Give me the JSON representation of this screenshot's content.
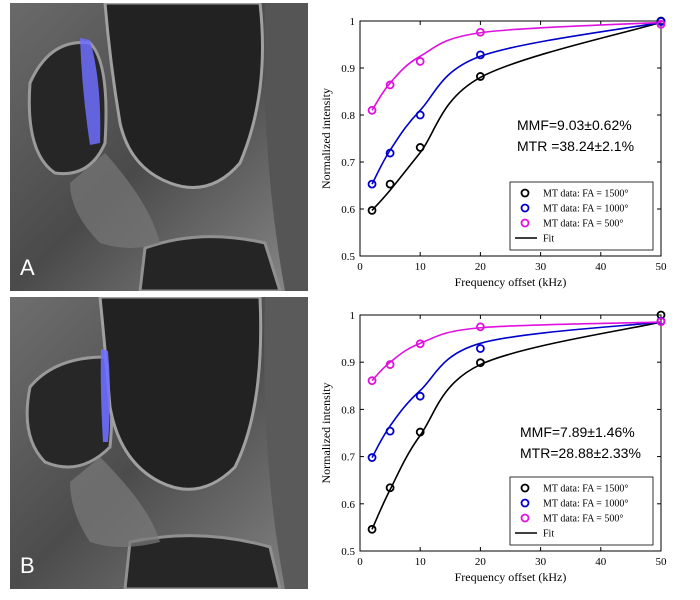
{
  "panels": [
    {
      "label": "A",
      "stats": [
        "MMF=9.03±0.62%",
        "MTR =38.24±2.1%"
      ]
    },
    {
      "label": "B",
      "stats": [
        "MMF=7.89±1.46%",
        "MTR=28.88±2.33%"
      ]
    }
  ],
  "colors": {
    "fa1500": "#000000",
    "fa1000": "#0000cc",
    "fa500": "#e010e0",
    "overlay": "#6f6fff"
  },
  "chart_data": [
    {
      "type": "scatter",
      "title": "",
      "xlabel": "Frequency offset (kHz)",
      "ylabel": "Normalized intensity",
      "xlim": [
        0,
        50
      ],
      "ylim": [
        0.5,
        1
      ],
      "xticks": [
        "0",
        "10",
        "20",
        "30",
        "40",
        "50"
      ],
      "yticks": [
        "0.5",
        "0.6",
        "0.7",
        "0.8",
        "0.9",
        "1"
      ],
      "legend_position": "bottom-right",
      "legend": [
        "MT data: FA = 1500°",
        "MT data: FA = 1000°",
        "MT data: FA = 500°",
        "Fit"
      ],
      "series": [
        {
          "name": "MT data: FA = 1500°",
          "color": "#000000",
          "x": [
            2,
            5,
            10,
            20,
            50
          ],
          "y": [
            0.597,
            0.653,
            0.731,
            0.882,
            1.0
          ],
          "fit_y": [
            0.597,
            0.64,
            0.72,
            0.88,
            0.997
          ]
        },
        {
          "name": "MT data: FA = 1000°",
          "color": "#0000cc",
          "x": [
            2,
            5,
            10,
            20,
            50
          ],
          "y": [
            0.653,
            0.719,
            0.8,
            0.928,
            0.999
          ],
          "fit_y": [
            0.653,
            0.725,
            0.81,
            0.925,
            0.997
          ]
        },
        {
          "name": "MT data: FA = 500°",
          "color": "#e010e0",
          "x": [
            2,
            5,
            10,
            20,
            50
          ],
          "y": [
            0.81,
            0.864,
            0.914,
            0.976,
            0.993
          ],
          "fit_y": [
            0.81,
            0.868,
            0.925,
            0.975,
            0.997
          ]
        }
      ]
    },
    {
      "type": "scatter",
      "title": "",
      "xlabel": "Frequency offset (kHz)",
      "ylabel": "Normalized intensity",
      "xlim": [
        0,
        50
      ],
      "ylim": [
        0.5,
        1
      ],
      "xticks": [
        "0",
        "10",
        "20",
        "30",
        "40",
        "50"
      ],
      "yticks": [
        "0.5",
        "0.6",
        "0.7",
        "0.8",
        "0.9",
        "1"
      ],
      "legend_position": "bottom-right",
      "legend": [
        "MT data: FA = 1500°",
        "MT data: FA = 1000°",
        "MT data: FA = 500°",
        "Fit"
      ],
      "series": [
        {
          "name": "MT data: FA = 1500°",
          "color": "#000000",
          "x": [
            2,
            5,
            10,
            20,
            50
          ],
          "y": [
            0.546,
            0.634,
            0.752,
            0.899,
            1.0
          ],
          "fit_y": [
            0.546,
            0.63,
            0.745,
            0.895,
            0.985
          ]
        },
        {
          "name": "MT data: FA = 1000°",
          "color": "#0000cc",
          "x": [
            2,
            5,
            10,
            20,
            50
          ],
          "y": [
            0.698,
            0.754,
            0.828,
            0.929,
            0.987
          ],
          "fit_y": [
            0.698,
            0.765,
            0.84,
            0.94,
            0.985
          ]
        },
        {
          "name": "MT data: FA = 500°",
          "color": "#e010e0",
          "x": [
            2,
            5,
            10,
            20,
            50
          ],
          "y": [
            0.861,
            0.895,
            0.939,
            0.975,
            0.986
          ],
          "fit_y": [
            0.861,
            0.9,
            0.94,
            0.973,
            0.985
          ]
        }
      ]
    }
  ]
}
